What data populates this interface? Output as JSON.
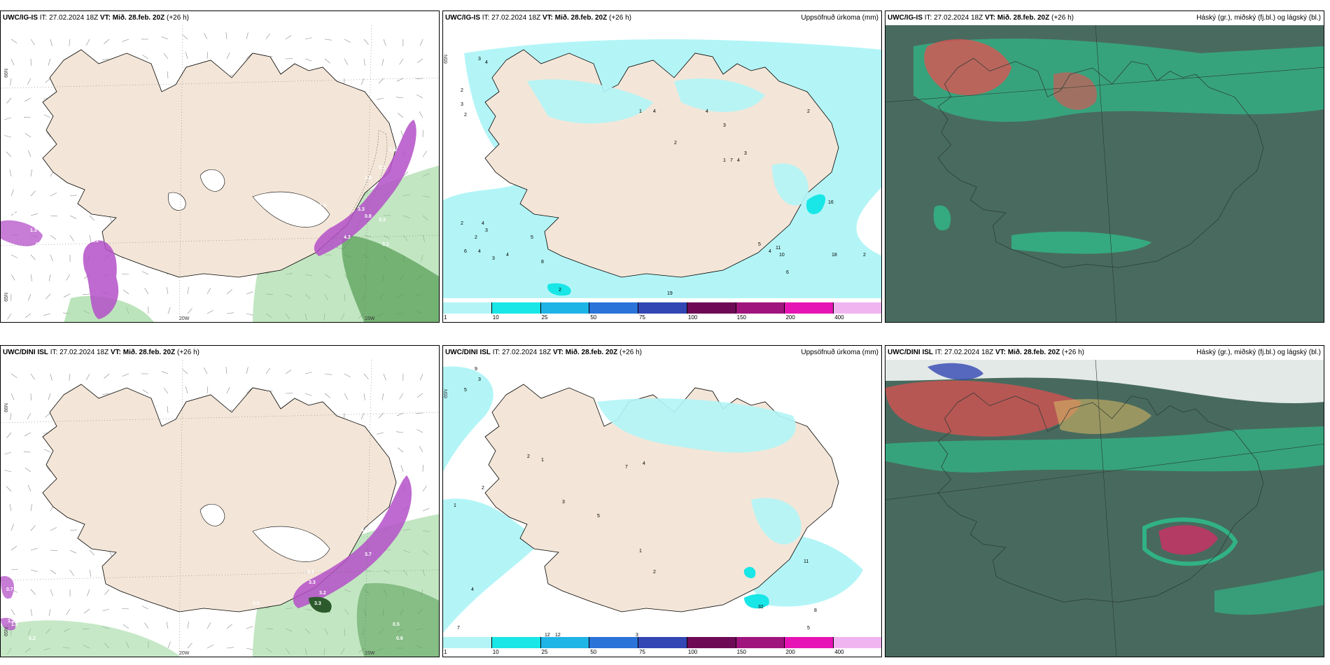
{
  "rows": [
    {
      "wind": {
        "model": "UWC/IG-IS",
        "it": "IT: 27.02.2024 18Z",
        "vt": "VT: Mið. 28.feb. 20Z",
        "lead": "(+26 h)",
        "lat_labels": [
          "66N",
          "65N"
        ],
        "lon_labels": [
          "20W",
          "15W"
        ],
        "values": [
          "1.9",
          "0.7",
          "1.3",
          "0.5",
          "3.1",
          "3.3",
          "1.8",
          "2.1",
          "3.3",
          "1.6",
          "0.8",
          "3.3",
          "4.3",
          "3.1",
          "1.8"
        ]
      },
      "precip": {
        "model": "UWC/IG-IS",
        "it": "IT: 27.02.2024 18Z",
        "vt": "VT: Mið. 28.feb. 20Z",
        "lead": "(+26 h)",
        "title": "Uppsöfnuð úrkoma (mm)",
        "lat_labels": [
          "65N"
        ],
        "values": [
          "3",
          "4",
          "2",
          "3",
          "2",
          "2",
          "4",
          "3",
          "2",
          "6",
          "4",
          "3",
          "4",
          "5",
          "2",
          "8",
          "19",
          "4",
          "2",
          "4",
          "3",
          "7",
          "4",
          "3",
          "11",
          "10",
          "5",
          "4",
          "6",
          "18",
          "2",
          "16",
          "1",
          "2",
          "1"
        ]
      },
      "cloud": {
        "model": "UWC/IG-IS",
        "it": "IT: 27.02.2024 18Z",
        "vt": "VT: Mið. 28.feb. 20Z",
        "lead": "(+26 h)",
        "title": "Háský (gr.), miðský (fj.bl.) og lágský (bl.)"
      }
    },
    {
      "wind": {
        "model": "UWC/DINI ISL",
        "it": "IT: 27.02.2024 18Z",
        "vt": "VT: Mið. 28.feb. 20Z",
        "lead": "(+26 h)",
        "lat_labels": [
          "66N",
          "65N"
        ],
        "lon_labels": [
          "20W",
          "15W"
        ],
        "values": [
          "0.7",
          "1.2",
          "0.2",
          "2.3",
          "3.1",
          "3.3",
          "3.7",
          "4.3",
          "3.2",
          "3.3",
          "0.6",
          "0.5",
          "0.6",
          "1.2"
        ]
      },
      "precip": {
        "model": "UWC/DINI ISL",
        "it": "IT: 27.02.2024 18Z",
        "vt": "VT: Mið. 28.feb. 20Z",
        "lead": "(+26 h)",
        "title": "Uppsöfnuð úrkoma (mm)",
        "lat_labels": [
          "65N"
        ],
        "values": [
          "9",
          "3",
          "5",
          "2",
          "1",
          "2",
          "1",
          "4",
          "3",
          "5",
          "7",
          "2",
          "1",
          "11",
          "32",
          "8",
          "5",
          "4",
          "7",
          "12",
          "12",
          "3"
        ]
      },
      "cloud": {
        "model": "UWC/DINI ISL",
        "it": "IT: 27.02.2024 18Z",
        "vt": "VT: Mið. 28.feb. 20Z",
        "lead": "(+26 h)",
        "title": "Háský (gr.), miðský (fj.bl.) og lágský (bl.)"
      }
    }
  ],
  "colorbar": {
    "labels": [
      "1",
      "10",
      "25",
      "50",
      "75",
      "100",
      "150",
      "200",
      "400"
    ],
    "colors": [
      "#b3f5f7",
      "#19e6e6",
      "#1fb4e6",
      "#2a73d9",
      "#3246b4",
      "#6e0a55",
      "#a0147d",
      "#e614b4",
      "#f0b4f0"
    ]
  },
  "colors": {
    "land": "#f3e6d8",
    "sea_white": "#ffffff",
    "precip_light": "#b3f5f7",
    "wind_purple": "#b450c8",
    "wind_green": "#8fd28f",
    "cloud_dark": "#3f5f55",
    "cloud_green": "#28d296",
    "cloud_red": "#e65050"
  }
}
